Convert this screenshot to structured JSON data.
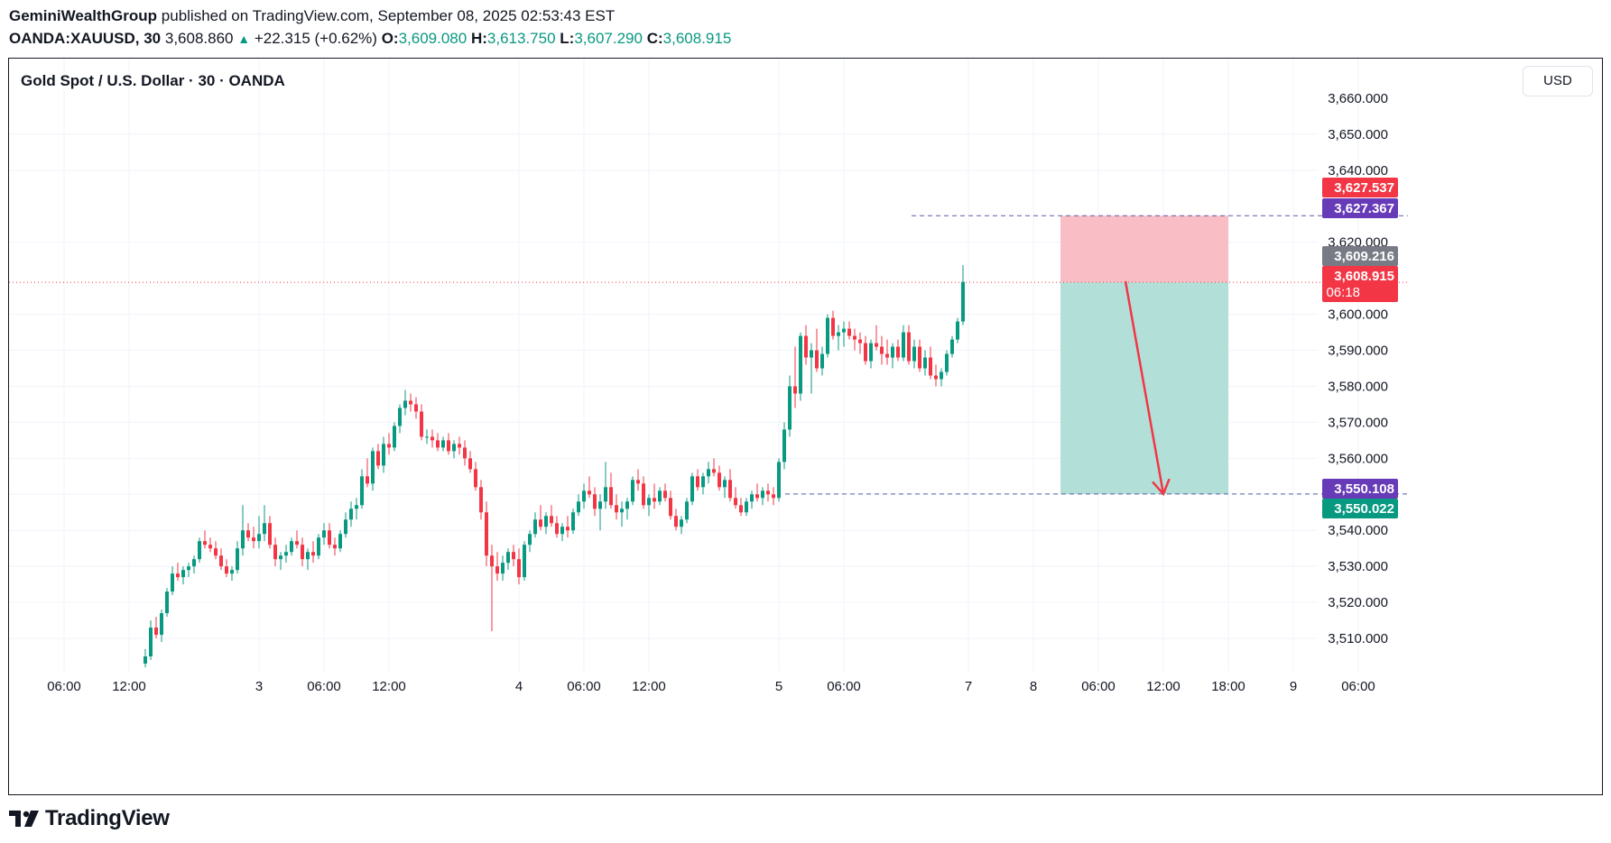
{
  "header": {
    "publisher": "GeminiWealthGroup",
    "published_text": "published on TradingView.com, September 08, 2025 02:53:43 EST"
  },
  "quote": {
    "symbol_tf": "OANDA:XAUUSD, 30",
    "last": "3,608.860",
    "change": "+22.315 (+0.62%)",
    "o_label": "O:",
    "o": "3,609.080",
    "h_label": "H:",
    "h": "3,613.750",
    "l_label": "L:",
    "l": "3,607.290",
    "c_label": "C:",
    "c": "3,608.915"
  },
  "chart_title": "Gold Spot / U.S. Dollar · 30 · OANDA",
  "currency": "USD",
  "brand": "TradingView",
  "colors": {
    "up": "#089981",
    "down": "#f23645",
    "stop_zone": "#f9bec5",
    "target_zone": "#b2e0d9",
    "arrow": "#f23645",
    "level_line": "#5b5fa8"
  },
  "chart_data": {
    "type": "candlestick",
    "instrument": "OANDA:XAUUSD",
    "timeframe": "30",
    "ylim": [
      3502,
      3661
    ],
    "y_ticks": [
      3510,
      3520,
      3530,
      3540,
      3550,
      3560,
      3570,
      3580,
      3590,
      3600,
      3620,
      3640,
      3650
    ],
    "y_tick_labels": [
      "3,510.000",
      "3,520.000",
      "3,530.000",
      "3,540.000",
      "3,550.000",
      "3,560.000",
      "3,570.000",
      "3,580.000",
      "3,590.000",
      "3,600.000",
      "3,620.000",
      "3,640.000",
      "3,650.000"
    ],
    "top_partial_label": "3,660.000",
    "x_labels": [
      {
        "text": "06:00",
        "idx": -6
      },
      {
        "text": "12:00",
        "idx": 6
      },
      {
        "text": "3",
        "idx": 30
      },
      {
        "text": "06:00",
        "idx": 42
      },
      {
        "text": "12:00",
        "idx": 54
      },
      {
        "text": "4",
        "idx": 78
      },
      {
        "text": "06:00",
        "idx": 90
      },
      {
        "text": "12:00",
        "idx": 102
      },
      {
        "text": "5",
        "idx": 126
      },
      {
        "text": "06:00",
        "idx": 138
      },
      {
        "text": "7",
        "idx": 161
      },
      {
        "text": "8",
        "idx": 173
      },
      {
        "text": "06:00",
        "idx": 185
      },
      {
        "text": "12:00",
        "idx": 197
      },
      {
        "text": "18:00",
        "idx": 209
      },
      {
        "text": "9",
        "idx": 221
      },
      {
        "text": "06:00",
        "idx": 233
      }
    ],
    "price_badges": [
      {
        "text": "3,627.537",
        "value": 3627.537,
        "color": "#f23645"
      },
      {
        "text": "3,627.367",
        "value": 3627.367,
        "color": "#673ab7"
      },
      {
        "text": "3,609.216",
        "value": 3609.216,
        "color": "#787b86"
      },
      {
        "text": "3,608.915",
        "value": 3608.915,
        "color": "#f23645",
        "sub": "06:18"
      },
      {
        "text": "3,550.108",
        "value": 3550.108,
        "color": "#673ab7"
      },
      {
        "text": "3,550.022",
        "value": 3550.022,
        "color": "#089981"
      }
    ],
    "position": {
      "side": "short",
      "entry": 3608.9,
      "stop": 3627.4,
      "target": 3550.1,
      "start_idx": 178,
      "end_idx": 209
    },
    "arrow": {
      "from_idx": 190,
      "from_price": 3609.2,
      "to_idx": 197,
      "to_price": 3550.1
    },
    "candles": [
      [
        3503,
        3507,
        3502,
        3505
      ],
      [
        3505,
        3515,
        3504,
        3513
      ],
      [
        3513,
        3516,
        3510,
        3511
      ],
      [
        3511,
        3518,
        3509,
        3517
      ],
      [
        3517,
        3524,
        3516,
        3523
      ],
      [
        3523,
        3530,
        3522,
        3528
      ],
      [
        3528,
        3531,
        3526,
        3527
      ],
      [
        3527,
        3530,
        3525,
        3529
      ],
      [
        3529,
        3531,
        3527,
        3530
      ],
      [
        3530,
        3533,
        3528,
        3532
      ],
      [
        3532,
        3538,
        3531,
        3537
      ],
      [
        3537,
        3540,
        3535,
        3536
      ],
      [
        3536,
        3538,
        3534,
        3535
      ],
      [
        3535,
        3537,
        3532,
        3533
      ],
      [
        3533,
        3535,
        3529,
        3530
      ],
      [
        3530,
        3532,
        3527,
        3528
      ],
      [
        3528,
        3530,
        3526,
        3529
      ],
      [
        3529,
        3537,
        3528,
        3535
      ],
      [
        3535,
        3547,
        3533,
        3540
      ],
      [
        3540,
        3542,
        3537,
        3538
      ],
      [
        3538,
        3541,
        3535,
        3537
      ],
      [
        3537,
        3544,
        3535,
        3539
      ],
      [
        3539,
        3547,
        3537,
        3542
      ],
      [
        3542,
        3544,
        3535,
        3536
      ],
      [
        3536,
        3538,
        3530,
        3532
      ],
      [
        3532,
        3534,
        3529,
        3533
      ],
      [
        3533,
        3536,
        3531,
        3534
      ],
      [
        3534,
        3538,
        3533,
        3537
      ],
      [
        3537,
        3540,
        3535,
        3536
      ],
      [
        3536,
        3538,
        3530,
        3532
      ],
      [
        3532,
        3535,
        3529,
        3534
      ],
      [
        3534,
        3537,
        3531,
        3533
      ],
      [
        3533,
        3539,
        3532,
        3538
      ],
      [
        3538,
        3542,
        3536,
        3540
      ],
      [
        3540,
        3542,
        3535,
        3536
      ],
      [
        3536,
        3538,
        3533,
        3535
      ],
      [
        3535,
        3540,
        3534,
        3539
      ],
      [
        3539,
        3545,
        3538,
        3543
      ],
      [
        3543,
        3548,
        3541,
        3546
      ],
      [
        3546,
        3549,
        3543,
        3547
      ],
      [
        3547,
        3557,
        3546,
        3555
      ],
      [
        3555,
        3560,
        3552,
        3553
      ],
      [
        3553,
        3563,
        3551,
        3562
      ],
      [
        3562,
        3564,
        3557,
        3558
      ],
      [
        3558,
        3566,
        3556,
        3564
      ],
      [
        3564,
        3567,
        3561,
        3563
      ],
      [
        3563,
        3570,
        3562,
        3569
      ],
      [
        3569,
        3575,
        3567,
        3574
      ],
      [
        3574,
        3579,
        3572,
        3576
      ],
      [
        3576,
        3578,
        3573,
        3575
      ],
      [
        3575,
        3577,
        3571,
        3573
      ],
      [
        3573,
        3575,
        3565,
        3566
      ],
      [
        3566,
        3568,
        3564,
        3566
      ],
      [
        3566,
        3568,
        3563,
        3565
      ],
      [
        3565,
        3567,
        3562,
        3563
      ],
      [
        3563,
        3566,
        3562,
        3565
      ],
      [
        3565,
        3567,
        3561,
        3562
      ],
      [
        3562,
        3565,
        3560,
        3564
      ],
      [
        3564,
        3566,
        3561,
        3563
      ],
      [
        3563,
        3565,
        3558,
        3560
      ],
      [
        3560,
        3562,
        3556,
        3557
      ],
      [
        3557,
        3559,
        3551,
        3552
      ],
      [
        3552,
        3554,
        3543,
        3545
      ],
      [
        3545,
        3548,
        3530,
        3533
      ],
      [
        3533,
        3536,
        3512,
        3530
      ],
      [
        3530,
        3534,
        3526,
        3528
      ],
      [
        3528,
        3533,
        3526,
        3531
      ],
      [
        3531,
        3535,
        3529,
        3534
      ],
      [
        3534,
        3536,
        3530,
        3532
      ],
      [
        3532,
        3535,
        3525,
        3527
      ],
      [
        3527,
        3537,
        3526,
        3536
      ],
      [
        3536,
        3540,
        3534,
        3539
      ],
      [
        3539,
        3545,
        3538,
        3543
      ],
      [
        3543,
        3547,
        3540,
        3541
      ],
      [
        3541,
        3545,
        3539,
        3544
      ],
      [
        3544,
        3547,
        3541,
        3542
      ],
      [
        3542,
        3544,
        3538,
        3539
      ],
      [
        3539,
        3542,
        3537,
        3541
      ],
      [
        3541,
        3544,
        3538,
        3540
      ],
      [
        3540,
        3546,
        3539,
        3545
      ],
      [
        3545,
        3550,
        3544,
        3548
      ],
      [
        3548,
        3553,
        3546,
        3551
      ],
      [
        3551,
        3555,
        3549,
        3550
      ],
      [
        3550,
        3552,
        3544,
        3546
      ],
      [
        3546,
        3550,
        3540,
        3548
      ],
      [
        3548,
        3559,
        3546,
        3552
      ],
      [
        3552,
        3556,
        3546,
        3547
      ],
      [
        3547,
        3550,
        3543,
        3545
      ],
      [
        3545,
        3548,
        3541,
        3546
      ],
      [
        3546,
        3549,
        3543,
        3548
      ],
      [
        3548,
        3555,
        3547,
        3554
      ],
      [
        3554,
        3557,
        3551,
        3553
      ],
      [
        3553,
        3555,
        3546,
        3547
      ],
      [
        3547,
        3550,
        3544,
        3549
      ],
      [
        3549,
        3553,
        3546,
        3548
      ],
      [
        3548,
        3552,
        3547,
        3551
      ],
      [
        3551,
        3553,
        3548,
        3549
      ],
      [
        3549,
        3551,
        3543,
        3544
      ],
      [
        3544,
        3546,
        3540,
        3541
      ],
      [
        3541,
        3544,
        3539,
        3543
      ],
      [
        3543,
        3549,
        3542,
        3548
      ],
      [
        3548,
        3556,
        3547,
        3555
      ],
      [
        3555,
        3557,
        3551,
        3552
      ],
      [
        3552,
        3556,
        3550,
        3555
      ],
      [
        3555,
        3559,
        3553,
        3557
      ],
      [
        3557,
        3560,
        3555,
        3556
      ],
      [
        3556,
        3558,
        3551,
        3552
      ],
      [
        3552,
        3555,
        3549,
        3554
      ],
      [
        3554,
        3557,
        3548,
        3549
      ],
      [
        3549,
        3552,
        3546,
        3547
      ],
      [
        3547,
        3549,
        3544,
        3545
      ],
      [
        3545,
        3549,
        3544,
        3548
      ],
      [
        3548,
        3551,
        3546,
        3550
      ],
      [
        3550,
        3553,
        3548,
        3549
      ],
      [
        3549,
        3552,
        3547,
        3551
      ],
      [
        3551,
        3553,
        3548,
        3550
      ],
      [
        3550,
        3552,
        3547,
        3549
      ],
      [
        3549,
        3560,
        3548,
        3559
      ],
      [
        3559,
        3570,
        3557,
        3568
      ],
      [
        3568,
        3583,
        3566,
        3580
      ],
      [
        3580,
        3591,
        3574,
        3578
      ],
      [
        3578,
        3595,
        3576,
        3594
      ],
      [
        3594,
        3597,
        3586,
        3588
      ],
      [
        3588,
        3592,
        3578,
        3590
      ],
      [
        3590,
        3596,
        3584,
        3585
      ],
      [
        3585,
        3591,
        3583,
        3589
      ],
      [
        3589,
        3600,
        3588,
        3599
      ],
      [
        3599,
        3601,
        3593,
        3594
      ],
      [
        3594,
        3597,
        3590,
        3595
      ],
      [
        3595,
        3598,
        3591,
        3596
      ],
      [
        3596,
        3598,
        3593,
        3594
      ],
      [
        3594,
        3596,
        3590,
        3593
      ],
      [
        3593,
        3595,
        3589,
        3592
      ],
      [
        3592,
        3594,
        3586,
        3587
      ],
      [
        3587,
        3593,
        3585,
        3592
      ],
      [
        3592,
        3597,
        3590,
        3591
      ],
      [
        3591,
        3594,
        3586,
        3589
      ],
      [
        3589,
        3593,
        3586,
        3588
      ],
      [
        3588,
        3592,
        3585,
        3591
      ],
      [
        3591,
        3593,
        3587,
        3588
      ],
      [
        3588,
        3597,
        3587,
        3595
      ],
      [
        3595,
        3597,
        3586,
        3587
      ],
      [
        3587,
        3593,
        3585,
        3591
      ],
      [
        3591,
        3593,
        3584,
        3585
      ],
      [
        3585,
        3590,
        3583,
        3588
      ],
      [
        3588,
        3591,
        3582,
        3583
      ],
      [
        3583,
        3586,
        3580,
        3582
      ],
      [
        3582,
        3585,
        3580,
        3584
      ],
      [
        3584,
        3590,
        3583,
        3589
      ],
      [
        3589,
        3594,
        3588,
        3593
      ],
      [
        3593,
        3599,
        3592,
        3598
      ],
      [
        3598,
        3613.7,
        3597,
        3609
      ]
    ],
    "first_candle_idx": 9
  }
}
